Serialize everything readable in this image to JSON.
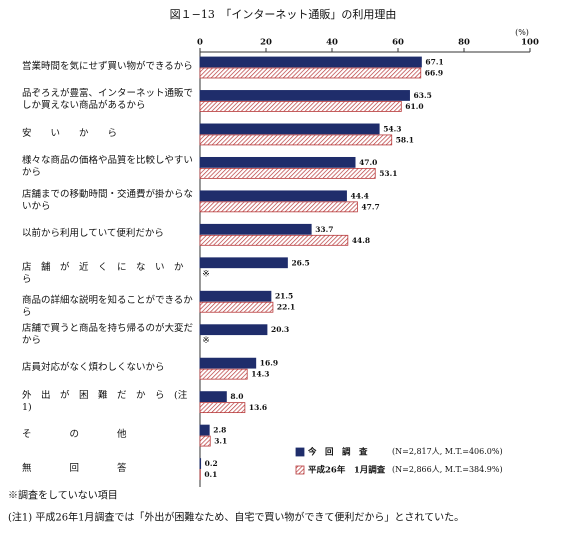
{
  "chart_data": {
    "type": "hbar",
    "title": "図１−13　「インターネット通販」の利用理由",
    "unit": "(%)",
    "categories": [
      "営業時間を気にせず買い物ができるから",
      "品ぞろえが豊富、インターネット通販でしか買えない商品があるから",
      "安　　い　　か　　ら",
      "様々な商品の価格や品質を比較しやすいから",
      "店舗までの移動時間・交通費が掛からないから",
      "以前から利用していて便利だから",
      "店　舗　が　近　く　に　な　い　か　ら",
      "商品の詳細な説明を知ることができるから",
      "店舗で買うと商品を持ち帰るのが大変だから",
      "店員対応がなく煩わしくないから",
      "外　出　が　困　難　だ　か　ら　(注1)",
      "そ　　　　の　　　　他",
      "無　　　　回　　　　答"
    ],
    "series": [
      {
        "name": "今　回　調　査",
        "note": "(N=2,817人, M.T.=406.0%)",
        "color": "#1f2d6b",
        "pattern": "solid",
        "values": [
          67.1,
          63.5,
          54.3,
          47.0,
          44.4,
          33.7,
          26.5,
          21.5,
          20.3,
          16.9,
          8.0,
          2.8,
          0.2
        ],
        "value_labels": [
          "67.1",
          "63.5",
          "54.3",
          "47.0",
          "44.4",
          "33.7",
          "26.5",
          "21.5",
          "20.3",
          "16.9",
          "8.0",
          "2.8",
          "0.2"
        ]
      },
      {
        "name": "平成26年　1月調査",
        "note": "(N=2,866人, M.T.=384.9%)",
        "color": "#b8393a",
        "pattern": "hatch",
        "values": [
          66.9,
          61.0,
          58.1,
          53.1,
          47.7,
          44.8,
          null,
          22.1,
          null,
          14.3,
          13.6,
          3.1,
          0.1
        ],
        "value_labels": [
          "66.9",
          "61.0",
          "58.1",
          "53.1",
          "47.7",
          "44.8",
          null,
          "22.1",
          null,
          "14.3",
          "13.6",
          "3.1",
          "0.1"
        ]
      }
    ],
    "not_surveyed_mark": "※",
    "xlim": [
      0,
      100
    ],
    "xticks": [
      0,
      20,
      40,
      60,
      80,
      100
    ],
    "footnotes": [
      "※調査をしていない項目",
      "(注1)  平成26年1月調査では「外出が困難なため、自宅で買い物ができて便利だから」とされていた。"
    ]
  }
}
